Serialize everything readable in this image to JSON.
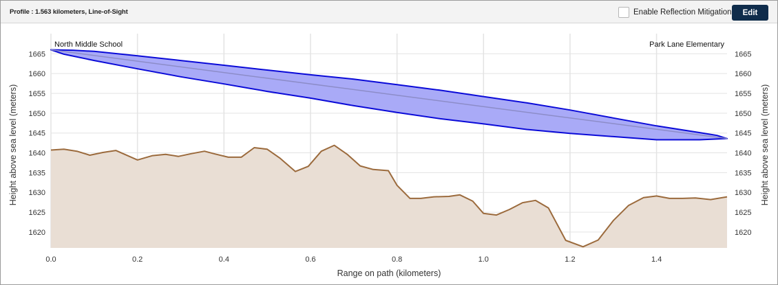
{
  "toolbar": {
    "profile_title": "Profile : 1.563 kilometers, Line-of-Sight",
    "reflection_label": "Enable Reflection Mitigation",
    "reflection_checked": false,
    "edit_label": "Edit"
  },
  "chart_data": {
    "type": "area",
    "xlabel": "Range on path (kilometers)",
    "ylabel_left": "Height above sea level (meters)",
    "ylabel_right": "Height above sea level (meters)",
    "xlim": [
      0,
      1.563
    ],
    "ylim": [
      1616,
      1668
    ],
    "x_ticks": [
      0.0,
      0.2,
      0.4,
      0.6,
      0.8,
      1.0,
      1.2,
      1.4
    ],
    "x_tick_labels": [
      "0.0",
      "0.2",
      "0.4",
      "0.6",
      "0.8",
      "1.0",
      "1.2",
      "1.4"
    ],
    "y_ticks": [
      1620,
      1625,
      1630,
      1635,
      1640,
      1645,
      1650,
      1655,
      1660,
      1665
    ],
    "y_tick_labels": [
      "1620",
      "1625",
      "1630",
      "1635",
      "1640",
      "1645",
      "1650",
      "1655",
      "1660",
      "1665"
    ],
    "grid": true,
    "endpoints": {
      "start_label": "North Middle School",
      "end_label": "Park Lane Elementary"
    },
    "colors": {
      "terrain_line": "#9b6a3c",
      "terrain_fill": "#e9ded4",
      "fresnel_fill": "#a9aaf7",
      "fresnel_stroke": "#0a0ad8",
      "los_line": "#8c8cc8",
      "grid": "#e3e3e3"
    },
    "series": [
      {
        "kind": "terrain",
        "x": [
          0.0,
          0.03,
          0.06,
          0.09,
          0.12,
          0.15,
          0.2,
          0.235,
          0.265,
          0.295,
          0.325,
          0.355,
          0.38,
          0.41,
          0.44,
          0.47,
          0.5,
          0.53,
          0.565,
          0.595,
          0.625,
          0.655,
          0.685,
          0.715,
          0.745,
          0.78,
          0.8,
          0.83,
          0.855,
          0.885,
          0.92,
          0.945,
          0.975,
          1.0,
          1.03,
          1.06,
          1.09,
          1.12,
          1.15,
          1.19,
          1.23,
          1.265,
          1.3,
          1.335,
          1.37,
          1.4,
          1.43,
          1.46,
          1.49,
          1.525,
          1.563
        ],
        "y": [
          1640.7,
          1640.9,
          1640.4,
          1639.4,
          1640.1,
          1640.6,
          1638.2,
          1639.3,
          1639.6,
          1639.1,
          1639.8,
          1640.4,
          1639.7,
          1638.9,
          1638.9,
          1641.3,
          1640.9,
          1638.6,
          1635.3,
          1636.6,
          1640.4,
          1641.9,
          1639.6,
          1636.7,
          1635.8,
          1635.5,
          1631.8,
          1628.5,
          1628.5,
          1628.9,
          1629.0,
          1629.4,
          1627.8,
          1624.7,
          1624.3,
          1625.7,
          1627.4,
          1628.0,
          1626.1,
          1617.9,
          1616.3,
          1618.0,
          1622.9,
          1626.7,
          1628.7,
          1629.1,
          1628.5,
          1628.5,
          1628.6,
          1628.2,
          1628.9
        ]
      },
      {
        "kind": "fresnel_upper",
        "x": [
          0.0,
          0.05,
          0.1,
          0.2,
          0.3,
          0.4,
          0.5,
          0.6,
          0.7,
          0.8,
          0.9,
          1.0,
          1.1,
          1.2,
          1.3,
          1.4,
          1.5,
          1.54,
          1.563
        ],
        "y": [
          1666.0,
          1665.9,
          1665.6,
          1664.5,
          1663.3,
          1662.1,
          1660.9,
          1659.7,
          1658.6,
          1657.2,
          1655.8,
          1654.2,
          1652.6,
          1650.8,
          1648.8,
          1646.8,
          1645.1,
          1644.4,
          1643.6
        ]
      },
      {
        "kind": "fresnel_lower",
        "x": [
          0.0,
          0.03,
          0.1,
          0.2,
          0.3,
          0.4,
          0.5,
          0.6,
          0.7,
          0.8,
          0.9,
          1.0,
          1.1,
          1.2,
          1.3,
          1.4,
          1.45,
          1.5,
          1.563
        ],
        "y": [
          1666.0,
          1664.9,
          1663.3,
          1661.2,
          1659.2,
          1657.4,
          1655.5,
          1653.8,
          1651.9,
          1650.2,
          1648.6,
          1647.3,
          1645.9,
          1644.9,
          1644.1,
          1643.3,
          1643.3,
          1643.3,
          1643.6
        ]
      },
      {
        "kind": "line_of_sight",
        "x": [
          0.0,
          1.563
        ],
        "y": [
          1666.0,
          1643.6
        ]
      }
    ]
  }
}
